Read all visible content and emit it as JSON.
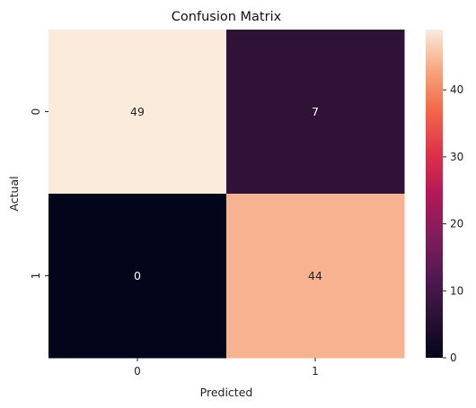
{
  "chart_data": {
    "type": "heatmap",
    "title": "Confusion Matrix",
    "xlabel": "Predicted",
    "ylabel": "Actual",
    "x_categories": [
      "0",
      "1"
    ],
    "y_categories": [
      "0",
      "1"
    ],
    "values": [
      [
        49,
        7
      ],
      [
        0,
        44
      ]
    ],
    "colorscale": "rocket",
    "vmin": 0,
    "vmax": 49,
    "colorbar_ticks": [
      0,
      10,
      20,
      30,
      40
    ],
    "grid": false,
    "legend": "colorbar-right"
  }
}
